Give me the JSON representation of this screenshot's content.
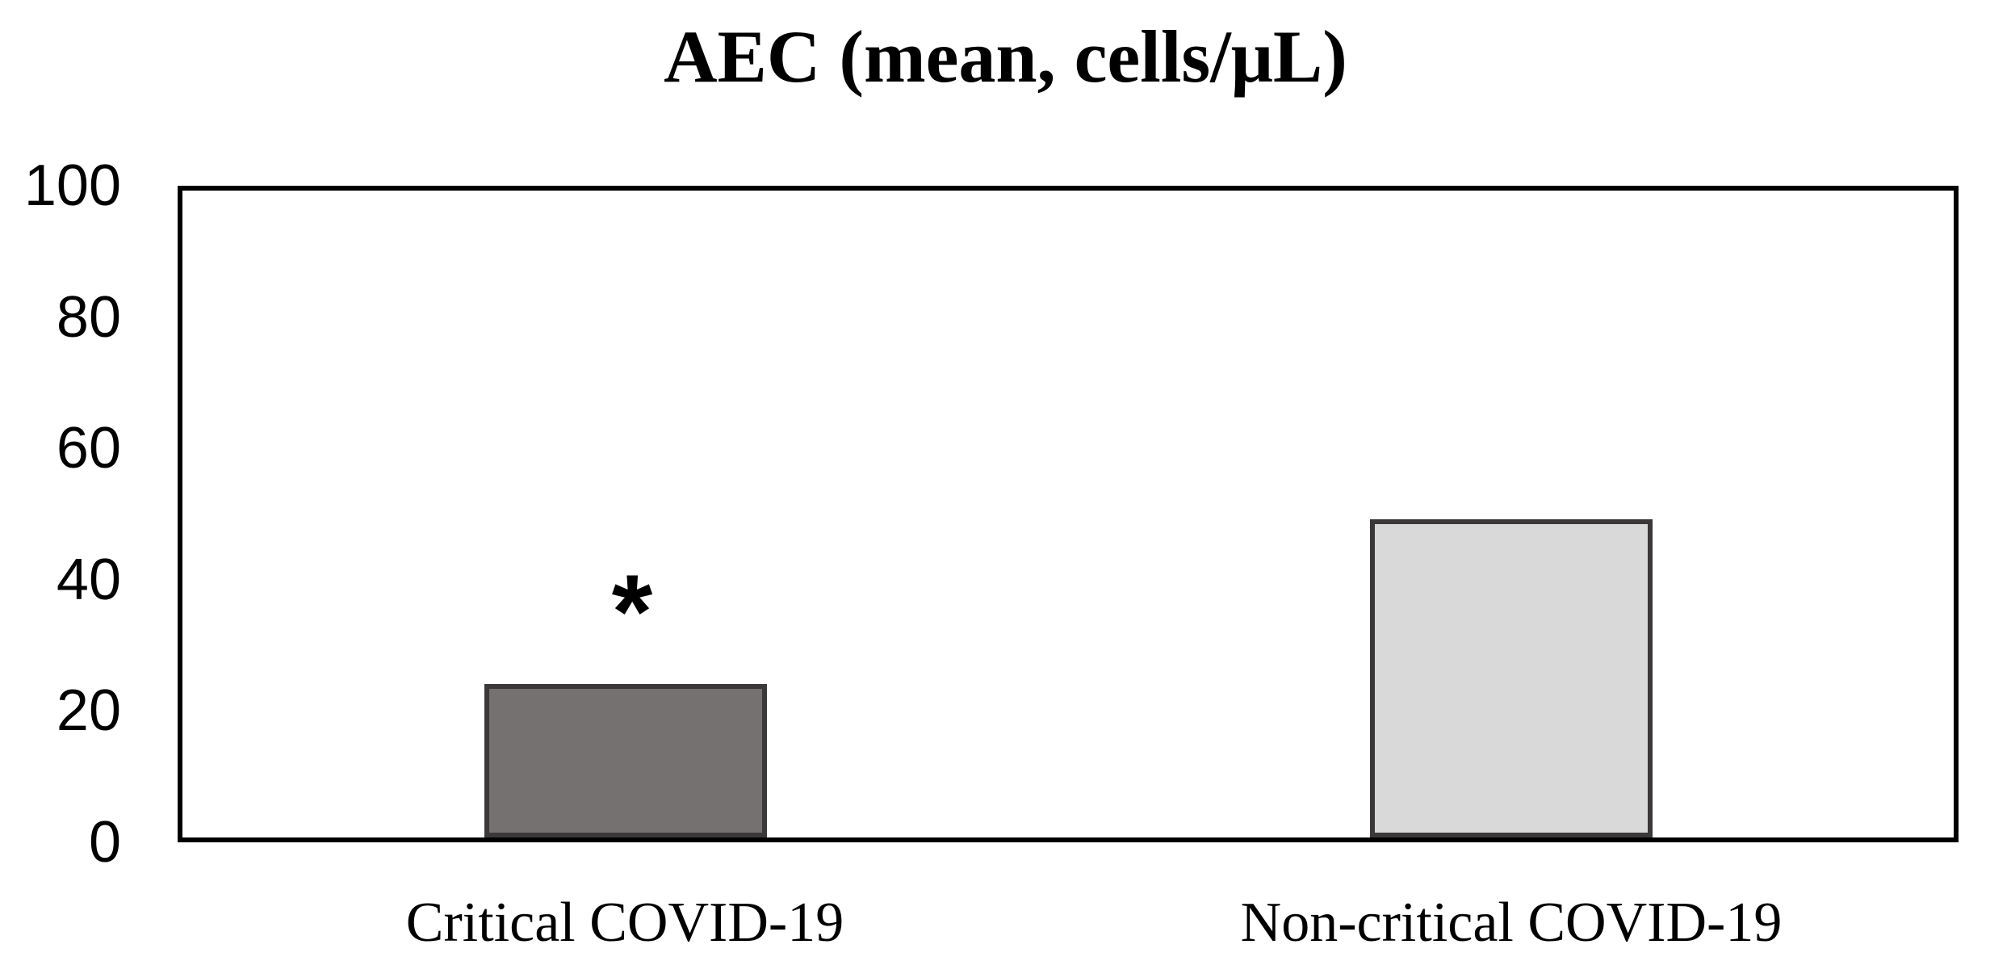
{
  "chart_data": {
    "type": "bar",
    "title": "AEC (mean, cells/μL)",
    "categories": [
      "Critical COVID-19",
      "Non-critical COVID-19"
    ],
    "values": [
      23.7,
      49.2
    ],
    "xlabel": "",
    "ylabel": "",
    "ylim": [
      0,
      100
    ],
    "yticks": [
      0,
      20,
      40,
      60,
      80,
      100
    ],
    "grid": "off",
    "legend": "none",
    "bar_colors": [
      "#767171",
      "#D9D9D9"
    ],
    "bar_border_color": "#3A3838",
    "axis_color": "#000000",
    "annotations": [
      {
        "text": "*",
        "category_index": 0
      }
    ]
  }
}
